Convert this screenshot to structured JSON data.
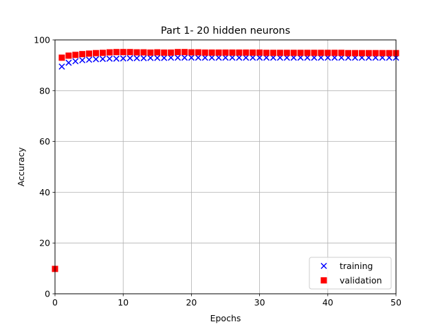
{
  "chart_data": {
    "type": "scatter",
    "title": "Part 1- 20 hidden neurons",
    "xlabel": "Epochs",
    "ylabel": "Accuracy",
    "xlim": [
      0,
      50
    ],
    "ylim": [
      0,
      100
    ],
    "x_ticks": [
      0,
      10,
      20,
      30,
      40,
      50
    ],
    "y_ticks": [
      0,
      20,
      40,
      60,
      80,
      100
    ],
    "grid": true,
    "legend_position": "lower-right",
    "series": [
      {
        "name": "training",
        "marker": "x",
        "color": "#0000ff",
        "x": [
          1,
          2,
          3,
          4,
          5,
          6,
          7,
          8,
          9,
          10,
          11,
          12,
          13,
          14,
          15,
          16,
          17,
          18,
          19,
          20,
          21,
          22,
          23,
          24,
          25,
          26,
          27,
          28,
          29,
          30,
          31,
          32,
          33,
          34,
          35,
          36,
          37,
          38,
          39,
          40,
          41,
          42,
          43,
          44,
          45,
          46,
          47,
          48,
          49,
          50
        ],
        "values": [
          89.5,
          91.0,
          91.6,
          92.0,
          92.2,
          92.4,
          92.5,
          92.6,
          92.6,
          92.7,
          92.8,
          92.8,
          92.8,
          92.9,
          92.9,
          92.9,
          93.0,
          93.0,
          93.0,
          93.0,
          93.0,
          93.0,
          93.0,
          93.0,
          93.0,
          93.0,
          93.0,
          93.0,
          93.0,
          93.0,
          93.0,
          93.0,
          93.0,
          93.0,
          93.0,
          93.0,
          93.0,
          93.0,
          93.0,
          93.0,
          93.0,
          93.0,
          93.0,
          93.0,
          93.0,
          93.0,
          93.0,
          93.0,
          93.0,
          93.0
        ]
      },
      {
        "name": "validation",
        "marker": "square",
        "color": "#ff0000",
        "x": [
          0,
          1,
          2,
          3,
          4,
          5,
          6,
          7,
          8,
          9,
          10,
          11,
          12,
          13,
          14,
          15,
          16,
          17,
          18,
          19,
          20,
          21,
          22,
          23,
          24,
          25,
          26,
          27,
          28,
          29,
          30,
          31,
          32,
          33,
          34,
          35,
          36,
          37,
          38,
          39,
          40,
          41,
          42,
          43,
          44,
          45,
          46,
          47,
          48,
          49,
          50
        ],
        "values": [
          9.8,
          93.0,
          93.8,
          94.1,
          94.4,
          94.6,
          94.8,
          94.9,
          95.1,
          95.2,
          95.2,
          95.2,
          95.1,
          95.1,
          95.0,
          95.1,
          95.0,
          95.0,
          95.2,
          95.2,
          95.1,
          95.1,
          95.0,
          95.0,
          95.0,
          95.0,
          95.0,
          95.0,
          95.0,
          95.0,
          95.0,
          94.9,
          94.9,
          94.9,
          94.9,
          94.9,
          94.9,
          94.9,
          94.9,
          94.9,
          94.9,
          94.9,
          94.9,
          94.8,
          94.8,
          94.8,
          94.8,
          94.8,
          94.8,
          94.8,
          94.8
        ]
      }
    ]
  }
}
